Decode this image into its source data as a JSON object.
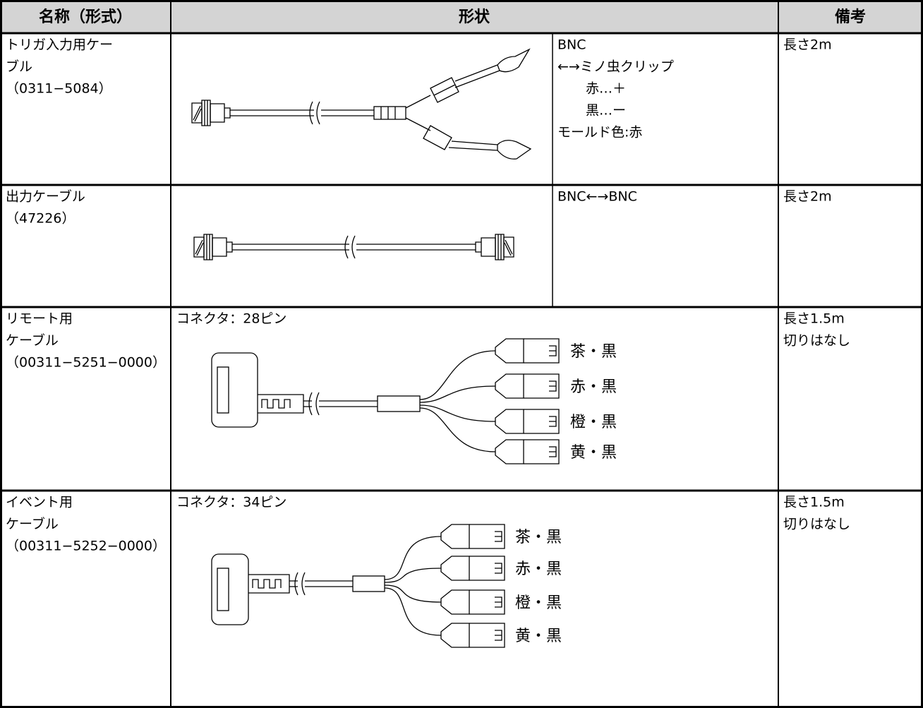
{
  "table": {
    "header": [
      "名称（形式）",
      "形状",
      "備考"
    ],
    "rows": [
      {
        "name": [
          "トリガ入力用ケー",
          "ブル",
          "（0311−5084）"
        ],
        "shape": [
          "BNC",
          "←→ミノ虫クリップ",
          "赤…＋",
          "黒…ー",
          "モールド色:赤"
        ],
        "note": [
          "長さ2m"
        ]
      },
      {
        "name": [
          "出力ケーブル",
          "（47226）"
        ],
        "shape": [
          "BNC←→BNC"
        ],
        "note": [
          "長さ2m"
        ]
      },
      {
        "name": [
          "リモート用",
          "ケーブル",
          "（00311−5251−0000）"
        ],
        "shape": [
          "コネクタ：28ピン"
        ],
        "labels": [
          "茶・黒",
          "赤・黒",
          "橙・黒",
          "黄・黒"
        ],
        "note": [
          "長さ1.5m",
          "切りはなし"
        ]
      },
      {
        "name": [
          "イベント用",
          "ケーブル",
          "（00311−5252−0000）"
        ],
        "shape": [
          "コネクタ：34ピン"
        ],
        "labels": [
          "茶・黒",
          "赤・黒",
          "橙・黒",
          "黄・黒"
        ],
        "note": [
          "長さ1.5m",
          "切りはなし"
        ]
      }
    ]
  }
}
